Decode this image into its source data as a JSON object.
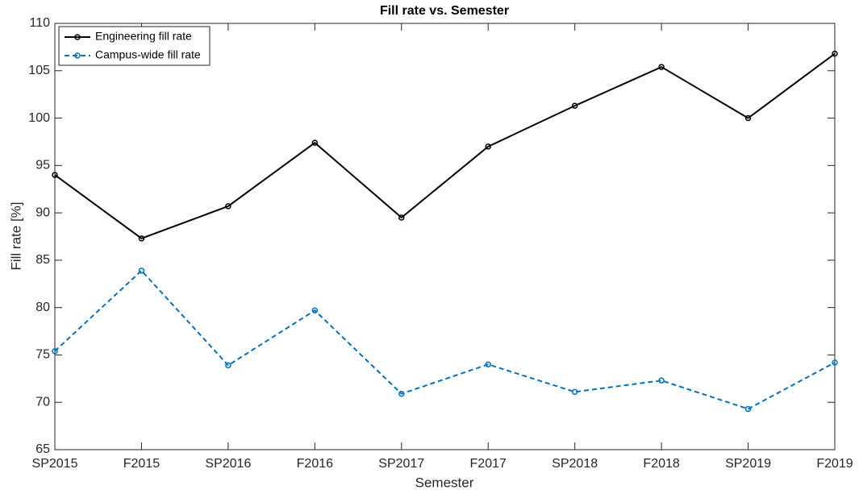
{
  "chart_data": {
    "type": "line",
    "title": "Fill rate vs. Semester",
    "x_label": "Semester",
    "y_label": "Fill rate [%]",
    "categories": [
      "SP2015",
      "F2015",
      "SP2016",
      "F2016",
      "SP2017",
      "F2017",
      "SP2018",
      "F2018",
      "SP2019",
      "F2019"
    ],
    "series": [
      {
        "name": "Engineering fill rate",
        "color": "#000000",
        "line_style": "solid",
        "values": [
          94.0,
          87.3,
          90.7,
          97.4,
          89.5,
          97.0,
          101.3,
          105.4,
          100.0,
          106.8
        ]
      },
      {
        "name": "Campus-wide fill rate",
        "color": "#0072BD",
        "line_style": "dashed",
        "values": [
          75.4,
          83.9,
          73.9,
          79.7,
          70.9,
          74.0,
          71.1,
          72.3,
          69.3,
          74.2
        ]
      }
    ],
    "ylim": [
      65,
      110
    ],
    "yticks": [
      65,
      70,
      75,
      80,
      85,
      90,
      95,
      100,
      105,
      110
    ],
    "grid": false,
    "legend": "upper-left"
  }
}
